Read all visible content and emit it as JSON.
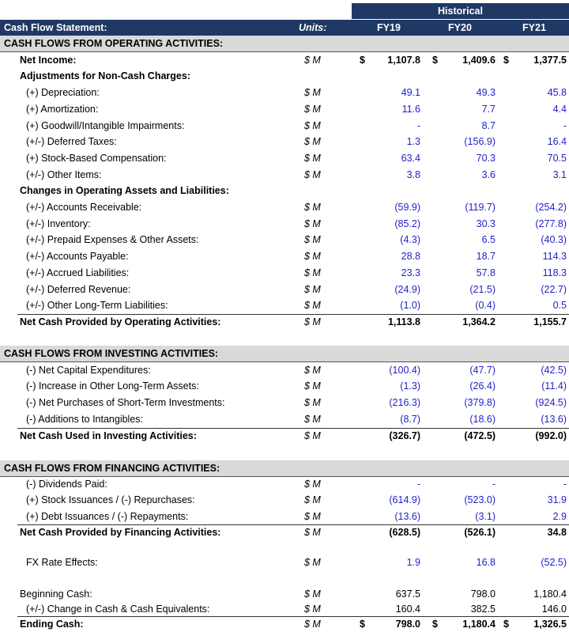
{
  "header": {
    "title": "Cash Flow Statement:",
    "units": "Units:",
    "group": "Historical",
    "years": [
      "FY19",
      "FY20",
      "FY21"
    ]
  },
  "rows": [
    {
      "label": "CASH FLOWS FROM OPERATING ACTIVITIES:"
    },
    {
      "label": "Net Income:",
      "units": "$ M",
      "currency": "$",
      "values": [
        "1,107.8",
        "1,409.6",
        "1,377.5"
      ]
    },
    {
      "label": "Adjustments for Non-Cash Charges:"
    },
    {
      "label": "(+) Depreciation:",
      "units": "$ M",
      "values": [
        "49.1",
        "49.3",
        "45.8"
      ]
    },
    {
      "label": "(+) Amortization:",
      "units": "$ M",
      "values": [
        "11.6",
        "7.7",
        "4.4"
      ]
    },
    {
      "label": "(+) Goodwill/Intangible Impairments:",
      "units": "$ M",
      "values": [
        "-",
        "8.7",
        "-"
      ]
    },
    {
      "label": "(+/-) Deferred Taxes:",
      "units": "$ M",
      "values": [
        "1.3",
        "(156.9)",
        "16.4"
      ]
    },
    {
      "label": "(+) Stock-Based Compensation:",
      "units": "$ M",
      "values": [
        "63.4",
        "70.3",
        "70.5"
      ]
    },
    {
      "label": "(+/-) Other Items:",
      "units": "$ M",
      "values": [
        "3.8",
        "3.6",
        "3.1"
      ]
    },
    {
      "label": "Changes in Operating Assets and Liabilities:"
    },
    {
      "label": "(+/-) Accounts Receivable:",
      "units": "$ M",
      "values": [
        "(59.9)",
        "(119.7)",
        "(254.2)"
      ]
    },
    {
      "label": "(+/-) Inventory:",
      "units": "$ M",
      "values": [
        "(85.2)",
        "30.3",
        "(277.8)"
      ]
    },
    {
      "label": "(+/-) Prepaid Expenses & Other Assets:",
      "units": "$ M",
      "values": [
        "(4.3)",
        "6.5",
        "(40.3)"
      ]
    },
    {
      "label": "(+/-) Accounts Payable:",
      "units": "$ M",
      "values": [
        "28.8",
        "18.7",
        "114.3"
      ]
    },
    {
      "label": "(+/-) Accrued Liabilities:",
      "units": "$ M",
      "values": [
        "23.3",
        "57.8",
        "118.3"
      ]
    },
    {
      "label": "(+/-) Deferred Revenue:",
      "units": "$ M",
      "values": [
        "(24.9)",
        "(21.5)",
        "(22.7)"
      ]
    },
    {
      "label": "(+/-) Other Long-Term Liabilities:",
      "units": "$ M",
      "values": [
        "(1.0)",
        "(0.4)",
        "0.5"
      ]
    },
    {
      "label": "Net Cash Provided by Operating Activities:",
      "units": "$ M",
      "values": [
        "1,113.8",
        "1,364.2",
        "1,155.7"
      ]
    },
    {
      "label": "CASH FLOWS FROM INVESTING ACTIVITIES:"
    },
    {
      "label": "(-) Net Capital Expenditures:",
      "units": "$ M",
      "values": [
        "(100.4)",
        "(47.7)",
        "(42.5)"
      ]
    },
    {
      "label": "(-) Increase in Other Long-Term Assets:",
      "units": "$ M",
      "values": [
        "(1.3)",
        "(26.4)",
        "(11.4)"
      ]
    },
    {
      "label": "(-) Net Purchases of Short-Term Investments:",
      "units": "$ M",
      "values": [
        "(216.3)",
        "(379.8)",
        "(924.5)"
      ]
    },
    {
      "label": "(-) Additions to Intangibles:",
      "units": "$ M",
      "values": [
        "(8.7)",
        "(18.6)",
        "(13.6)"
      ]
    },
    {
      "label": "Net Cash Used in Investing Activities:",
      "units": "$ M",
      "values": [
        "(326.7)",
        "(472.5)",
        "(992.0)"
      ]
    },
    {
      "label": "CASH FLOWS FROM FINANCING ACTIVITIES:"
    },
    {
      "label": "(-) Dividends Paid:",
      "units": "$ M",
      "values": [
        "-",
        "-",
        "-"
      ]
    },
    {
      "label": "(+) Stock Issuances / (-) Repurchases:",
      "units": "$ M",
      "values": [
        "(614.9)",
        "(523.0)",
        "31.9"
      ]
    },
    {
      "label": "(+) Debt Issuances / (-) Repayments:",
      "units": "$ M",
      "values": [
        "(13.6)",
        "(3.1)",
        "2.9"
      ]
    },
    {
      "label": "Net Cash Provided by Financing Activities:",
      "units": "$ M",
      "values": [
        "(628.5)",
        "(526.1)",
        "34.8"
      ]
    },
    {
      "label": "FX Rate Effects:",
      "units": "$ M",
      "values": [
        "1.9",
        "16.8",
        "(52.5)"
      ]
    },
    {
      "label": "Beginning Cash:",
      "units": "$ M",
      "values": [
        "637.5",
        "798.0",
        "1,180.4"
      ]
    },
    {
      "label": "(+/-) Change in Cash & Cash Equivalents:",
      "units": "$ M",
      "values": [
        "160.4",
        "382.5",
        "146.0"
      ]
    },
    {
      "label": "Ending Cash:",
      "units": "$ M",
      "currency": "$",
      "values": [
        "798.0",
        "1,180.4",
        "1,326.5"
      ]
    }
  ]
}
